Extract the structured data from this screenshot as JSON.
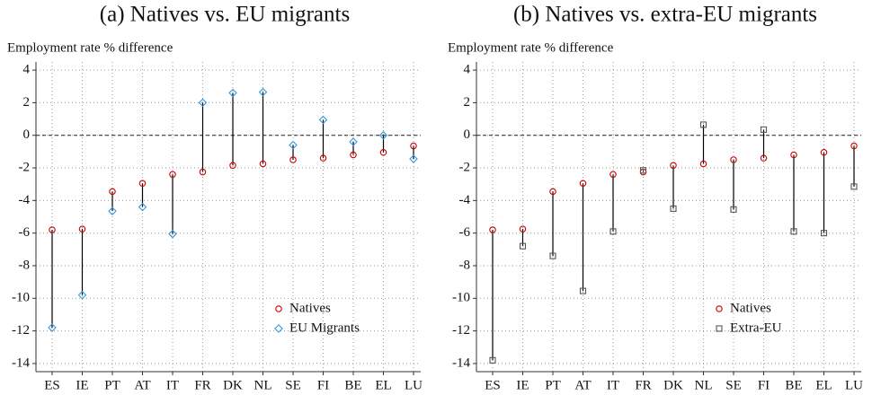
{
  "chart_data": [
    {
      "type": "dumbbell",
      "title": "(a) Natives vs. EU migrants",
      "y_label": "Employment rate % difference",
      "categories": [
        "ES",
        "IE",
        "PT",
        "AT",
        "IT",
        "FR",
        "DK",
        "NL",
        "SE",
        "FI",
        "BE",
        "EL",
        "LU"
      ],
      "series": [
        {
          "name": "Natives",
          "color": "#cc0000",
          "marker": "circle",
          "values": [
            -5.8,
            -5.75,
            -3.45,
            -2.95,
            -2.4,
            -2.25,
            -1.85,
            -1.75,
            -1.5,
            -1.4,
            -1.2,
            -1.05,
            -0.65
          ]
        },
        {
          "name": "EU Migrants",
          "color": "#3399dd",
          "marker": "diamond",
          "values": [
            -11.8,
            -9.8,
            -4.65,
            -4.4,
            -6.05,
            2.0,
            2.6,
            2.65,
            -0.6,
            0.95,
            -0.4,
            0.0,
            -1.45
          ]
        }
      ],
      "ylim": [
        -14.5,
        4.5
      ],
      "yticks": [
        -14,
        -12,
        -10,
        -8,
        -6,
        -4,
        -2,
        0,
        2,
        4
      ],
      "hline": 0,
      "grid": true,
      "legend": "lower right"
    },
    {
      "type": "dumbbell",
      "title": "(b) Natives vs. extra-EU migrants",
      "y_label": "Employment rate % difference",
      "categories": [
        "ES",
        "IE",
        "PT",
        "AT",
        "IT",
        "FR",
        "DK",
        "NL",
        "SE",
        "FI",
        "BE",
        "EL",
        "LU"
      ],
      "series": [
        {
          "name": "Natives",
          "color": "#cc0000",
          "marker": "circle",
          "values": [
            -5.8,
            -5.75,
            -3.45,
            -2.95,
            -2.4,
            -2.25,
            -1.85,
            -1.75,
            -1.5,
            -1.4,
            -1.2,
            -1.05,
            -0.65
          ]
        },
        {
          "name": "Extra-EU",
          "color": "#555555",
          "marker": "square",
          "values": [
            -13.8,
            -6.8,
            -7.4,
            -9.55,
            -5.9,
            -2.15,
            -4.5,
            0.65,
            -4.55,
            0.35,
            -5.9,
            -6.0,
            -3.15
          ]
        }
      ],
      "ylim": [
        -14.5,
        4.5
      ],
      "yticks": [
        -14,
        -12,
        -10,
        -8,
        -6,
        -4,
        -2,
        0,
        2,
        4
      ],
      "hline": 0,
      "grid": true,
      "legend": "lower right"
    }
  ]
}
